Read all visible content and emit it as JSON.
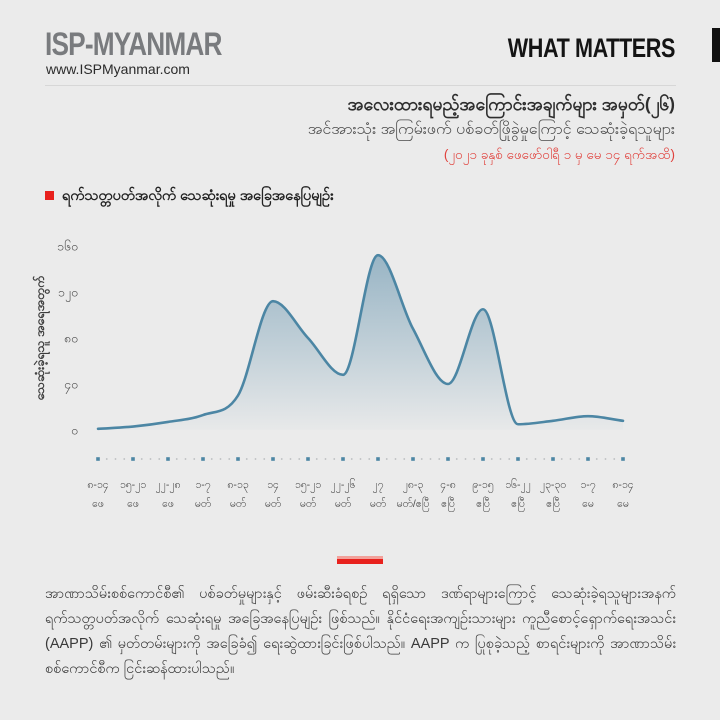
{
  "colors": {
    "background": "#ebebeb",
    "accent_red": "#e8211d",
    "accent_red_light": "#f2a19b",
    "title_red": "#e0413c",
    "line_blue": "#4c86a4",
    "logo_gray": "#797b7e",
    "brand_black": "#141414"
  },
  "header": {
    "logo_title": "ISP-MYANMAR",
    "site_url": "www.ISPMyanmar.com",
    "brand": "WHAT MATTERS"
  },
  "title_block": {
    "line1": "အလေးထားရမည့်အကြောင်းအချက်များ အမှတ်(၂၆)",
    "line2": "အင်အားသုံး အကြမ်းဖက် ပစ်ခတ်ဖြိုခွဲမှုကြောင့် သေဆုံးခဲ့ရသူများ",
    "line3": "(၂၀၂၁ ခုနှစ် ဖေဖော်ဝါရီ ၁ မှ မေ ၁၄ ရက်အထိ)"
  },
  "section": {
    "title": "ရက်သတ္တပတ်အလိုက် သေဆုံးရမှု အခြေအနေပြမျဉ်း"
  },
  "chart_data": {
    "type": "area",
    "title": "ရက်သတ္တပတ်အလိုက် သေဆုံးရမှု အခြေအနေပြမျဉ်း",
    "xlabel": "",
    "ylabel": "သေဆုံးခဲ့ရသူ အရေအတွက်",
    "ylim": [
      0,
      160
    ],
    "grid": false,
    "legend": false,
    "yticks": {
      "values": [
        0,
        40,
        80,
        120,
        160
      ],
      "labels": [
        "၀",
        "၄၀",
        "၈၀",
        "၁၂၀",
        "၁၆၀"
      ]
    },
    "categories": [
      {
        "range": "၈-၁၄",
        "month": "ဖေ"
      },
      {
        "range": "၁၅-၂၁",
        "month": "ဖေ"
      },
      {
        "range": "၂၂-၂၈",
        "month": "ဖေ"
      },
      {
        "range": "၁-၇",
        "month": "မတ်"
      },
      {
        "range": "၈-၁၃",
        "month": "မတ်"
      },
      {
        "range": "၁၄",
        "month": "မတ်"
      },
      {
        "range": "၁၅-၂၁",
        "month": "မတ်"
      },
      {
        "range": "၂၂-၂၆",
        "month": "မတ်"
      },
      {
        "range": "၂၇",
        "month": "မတ်"
      },
      {
        "range": "၂၈-၃",
        "month": "မတ်/ဧပြီ"
      },
      {
        "range": "၄-၈",
        "month": "ဧပြီ"
      },
      {
        "range": "၉-၁၅",
        "month": "ဧပြီ"
      },
      {
        "range": "၁၆-၂၂",
        "month": "ဧပြီ"
      },
      {
        "range": "၂၃-၃၀",
        "month": "ဧပြီ"
      },
      {
        "range": "၁-၇",
        "month": "မေ"
      },
      {
        "range": "၈-၁၄",
        "month": "မေ"
      }
    ],
    "values": [
      1,
      3,
      7,
      13,
      30,
      112,
      80,
      48,
      152,
      88,
      40,
      105,
      5,
      8,
      12,
      8
    ],
    "line_color": "#4c86a4",
    "fill_top_color": "#7fa4b9",
    "tick_square_color": "#4c86a4",
    "tick_dot_color": "#b9bcbe"
  },
  "footer": {
    "note": "အာဏာသိမ်းစစ်ကောင်စီ၏ ပစ်ခတ်မှုများနှင့် ဖမ်းဆီးခံရစဉ် ရရှိသော ဒဏ်ရာများကြောင့် သေဆုံးခဲ့ရသူများအနက် ရက်သတ္တပတ်အလိုက် သေဆုံးရမှု အခြေအနေပြမျဉ်း ဖြစ်သည်။ နိုင်ငံရေးအကျဉ်းသားများ ကူညီစောင့်ရှောက်ရေးအသင်း (AAPP) ၏ မှတ်တမ်းများကို အခြေခံ၍ ရေးဆွဲထားခြင်းဖြစ်ပါသည်။ AAPP က ပြုစုခဲ့သည့် စာရင်းများကို အာဏာသိမ်း စစ်ကောင်စီက ငြင်းဆန်ထားပါသည်။"
  }
}
